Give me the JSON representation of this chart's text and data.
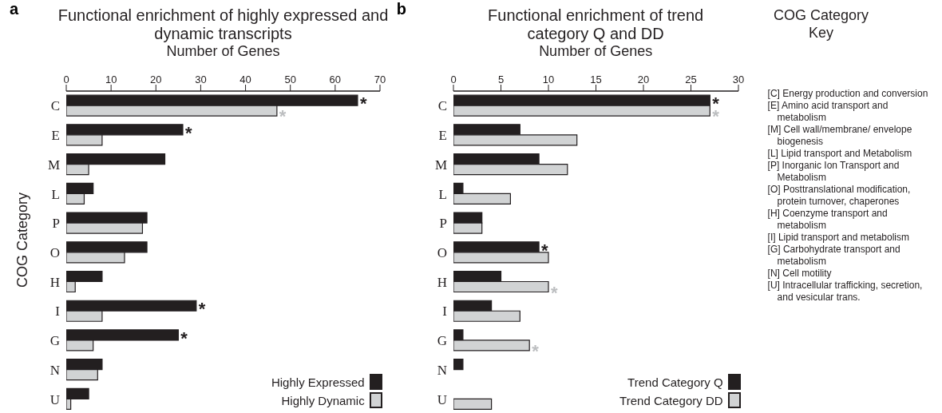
{
  "chart_data": [
    {
      "type": "bar",
      "orientation": "horizontal",
      "title": "Functional enrichment of highly expressed and dynamic transcripts",
      "xlabel": "Number of Genes",
      "ylabel": "COG Category",
      "categories": [
        "C",
        "E",
        "M",
        "L",
        "P",
        "O",
        "H",
        "I",
        "G",
        "N",
        "U"
      ],
      "xlim": [
        0,
        70
      ],
      "xticks": [
        0,
        10,
        20,
        30,
        40,
        50,
        60,
        70
      ],
      "legend": "bottom right",
      "series": [
        {
          "name": "Highly Expressed",
          "color": "#231f20",
          "values": [
            65,
            26,
            22,
            6,
            18,
            18,
            8,
            29,
            25,
            8,
            5
          ]
        },
        {
          "name": "Highly Dynamic",
          "color": "#d1d3d4",
          "values": [
            47,
            8,
            5,
            4,
            17,
            13,
            2,
            8,
            6,
            7,
            1
          ]
        }
      ],
      "annotations": [
        "a",
        {
          "text": "*",
          "x": 65,
          "y": "C"
        },
        {
          "text": "*",
          "x": 47,
          "y": "C"
        },
        {
          "text": "*",
          "x": 26,
          "y": "E"
        },
        {
          "text": "*",
          "x": 29,
          "y": "I"
        },
        {
          "text": "*",
          "x": 25,
          "y": "G"
        }
      ]
    },
    {
      "type": "bar",
      "orientation": "horizontal",
      "title": "Functional enrichment of trend category Q and DD",
      "xlabel": "Number of Genes",
      "categories": [
        "C",
        "E",
        "M",
        "L",
        "P",
        "O",
        "H",
        "I",
        "G",
        "N",
        "U"
      ],
      "xlim": [
        0,
        30
      ],
      "xticks": [
        0,
        5,
        10,
        15,
        20,
        25,
        30
      ],
      "legend": "bottom right",
      "series": [
        {
          "name": "Trend Category Q",
          "color": "#231f20",
          "values": [
            27,
            7,
            9,
            1,
            3,
            9,
            5,
            4,
            1,
            1,
            0
          ]
        },
        {
          "name": "Trend Category DD",
          "color": "#d1d3d4",
          "values": [
            27,
            13,
            12,
            6,
            3,
            10,
            10,
            7,
            8,
            0,
            4
          ]
        }
      ],
      "annotations": [
        "b",
        {
          "text": "*",
          "x": 27,
          "y": "C"
        },
        {
          "text": "*",
          "x": 27,
          "y": "C"
        },
        {
          "text": "*",
          "x": 9,
          "y": "O"
        },
        {
          "text": "*",
          "x": 10,
          "y": "H"
        },
        {
          "text": "*",
          "x": 8,
          "y": "G"
        }
      ]
    },
    {
      "type": "other",
      "title": "COG Category Key",
      "annotations": [
        "[C] Energy production and conversion",
        "[E] Amino acid transport and metabolism",
        "[M] Cell wall/membrane/ envelope biogenesis",
        "[L] Lipid transport and Metabolism",
        "[P] Inorganic Ion Transport and Metabolism",
        "[O] Posttranslational modification, protein turnover, chaperones",
        "[H] Coenzyme transport and metabolism",
        "[I] Lipid transport and metabolism",
        "[G] Carbohydrate transport and metabolism",
        "[N] Cell motility",
        "[U] Intracellular trafficking, secretion, and vesicular trans."
      ]
    }
  ]
}
